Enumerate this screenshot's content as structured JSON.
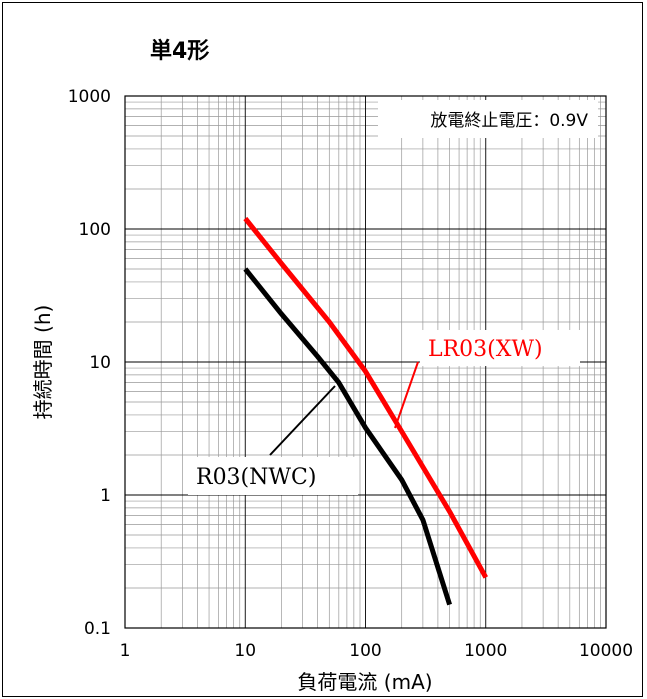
{
  "chart_data": {
    "type": "line",
    "title": "単4形",
    "annotation": "放電終止電圧：0.9V",
    "xlabel": "負荷電流 (mA)",
    "ylabel": "持続時間 (h)",
    "x_scale": "log",
    "y_scale": "log",
    "xlim": [
      1,
      10000
    ],
    "ylim": [
      0.1,
      1000
    ],
    "x_ticks": [
      "1",
      "10",
      "100",
      "1000",
      "10000"
    ],
    "y_ticks": [
      "0.1",
      "1",
      "10",
      "100",
      "1000"
    ],
    "grid": true,
    "series": [
      {
        "name": "LR03(XW)",
        "color": "#ff0000",
        "x": [
          10,
          20,
          50,
          100,
          200,
          500,
          1000
        ],
        "y": [
          120,
          55,
          20,
          8.5,
          3,
          0.75,
          0.24
        ]
      },
      {
        "name": "R03(NWC)",
        "color": "#000000",
        "x": [
          10,
          20,
          40,
          60,
          100,
          200,
          300,
          500
        ],
        "y": [
          50,
          23,
          11,
          7,
          3.2,
          1.3,
          0.65,
          0.15
        ]
      }
    ]
  }
}
